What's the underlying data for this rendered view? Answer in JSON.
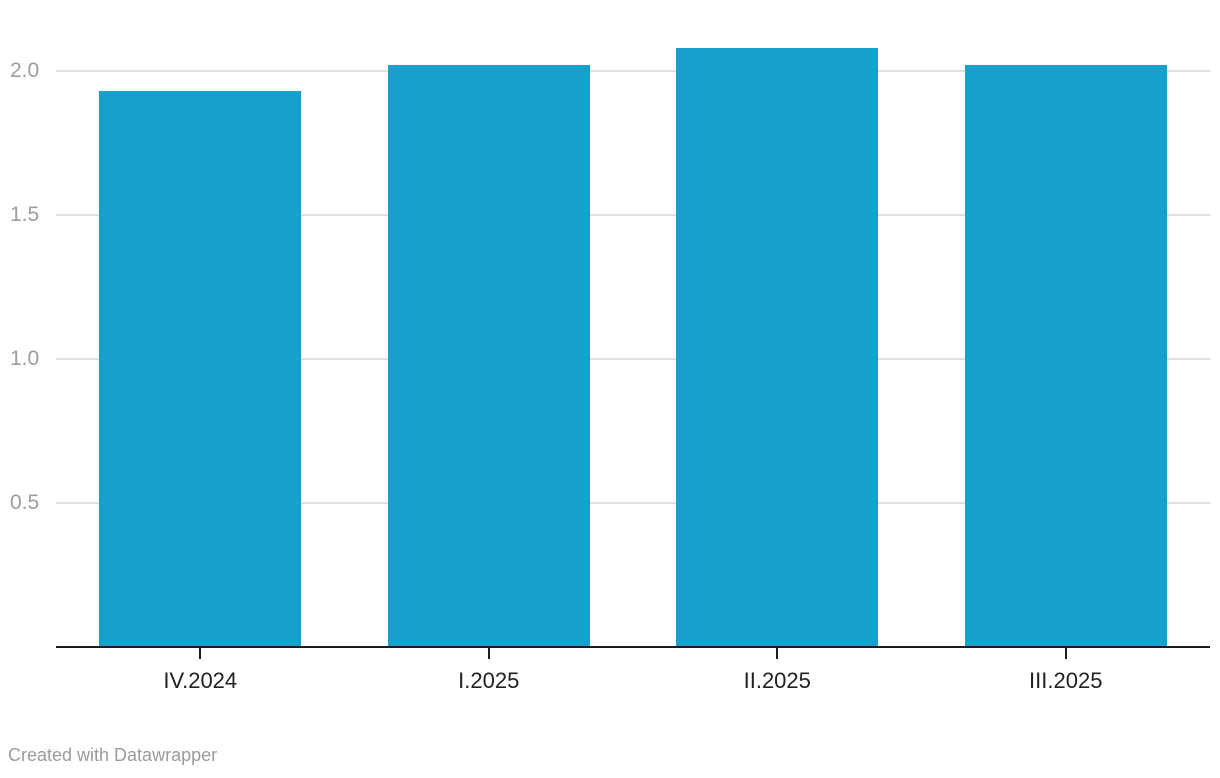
{
  "footer": {
    "credit": "Created with Datawrapper"
  },
  "colors": {
    "background": "#ffffff",
    "bar": "#18a0cd",
    "gridline": "#e0e0e0",
    "axis_line": "#1d1d1d",
    "x_label": "#222222",
    "y_label": "#9c9c9c",
    "credit_text": "#9b9b9b"
  },
  "chart_data": {
    "type": "bar",
    "categories": [
      "IV.2024",
      "I.2025",
      "II.2025",
      "III.2025"
    ],
    "values": [
      1.93,
      2.02,
      2.08,
      2.02
    ],
    "title": "",
    "xlabel": "",
    "ylabel": "",
    "ylim": [
      0,
      2.2
    ],
    "y_ticks": [
      0.5,
      1.0,
      1.5,
      2.0
    ],
    "grid": true,
    "legend": false
  }
}
